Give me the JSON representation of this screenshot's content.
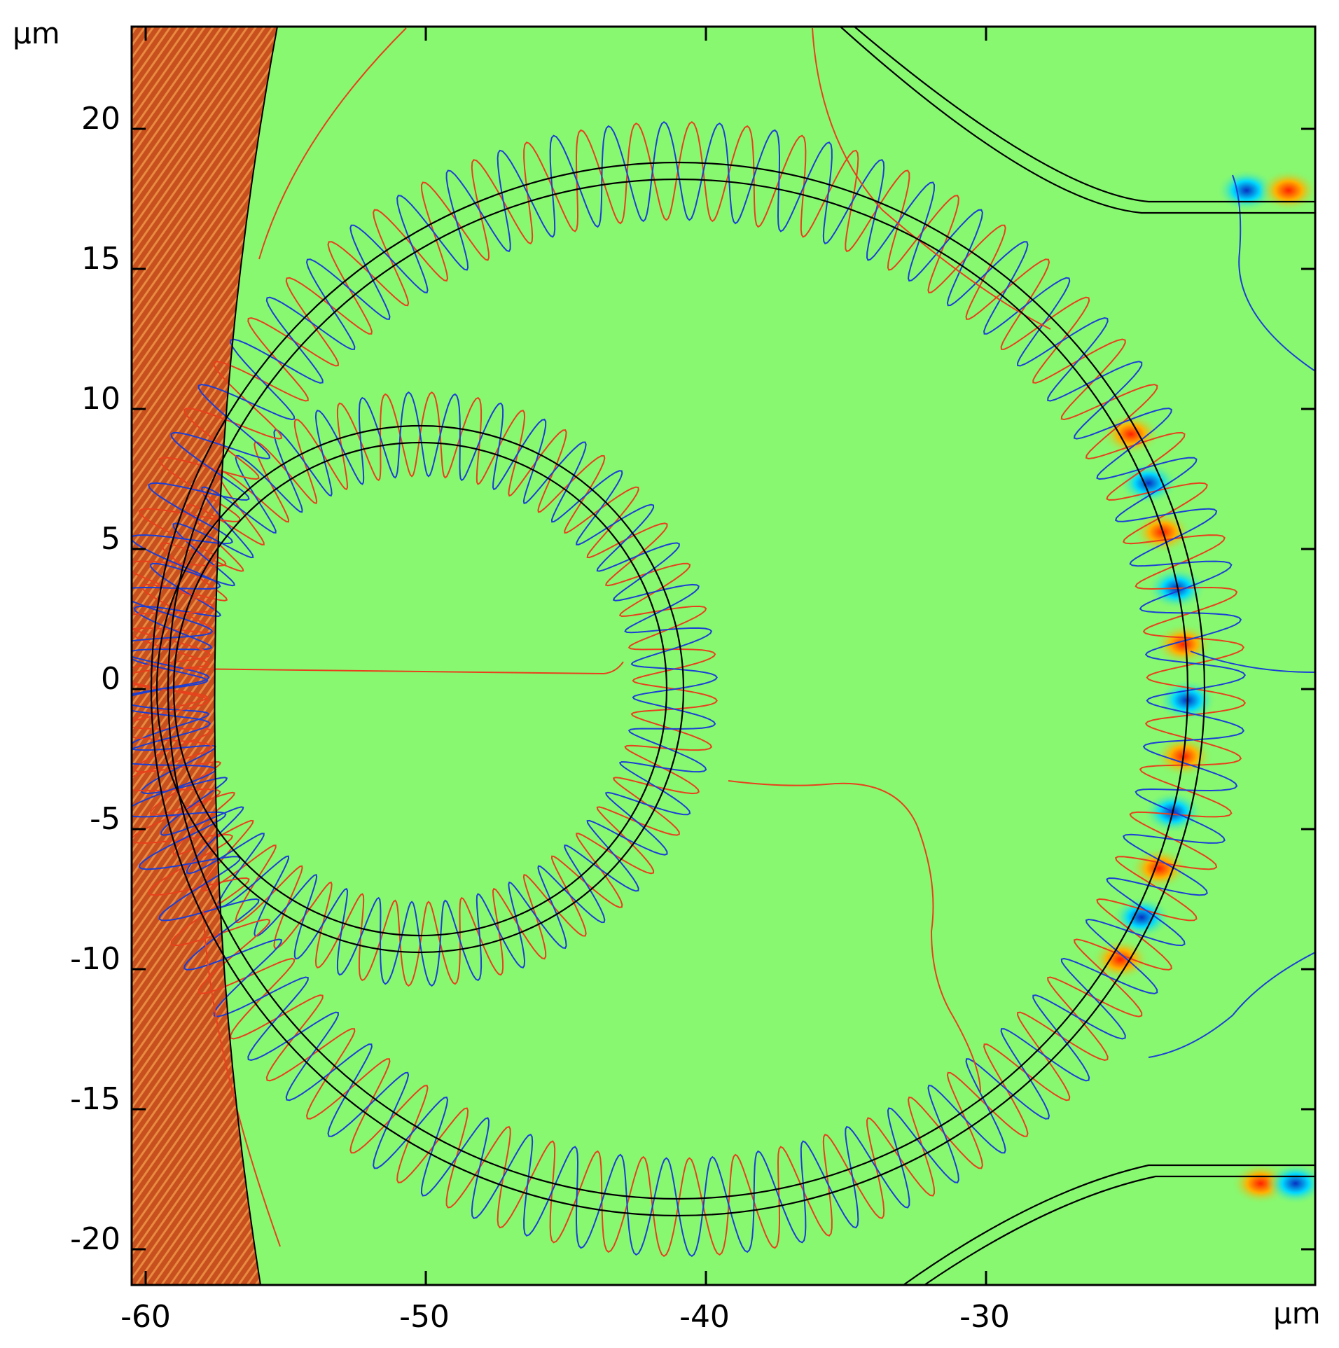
{
  "figure": {
    "x_unit": "μm",
    "y_unit": "μm",
    "x_ticks": [
      "-60",
      "-50",
      "-40",
      "-30"
    ],
    "x_tick_values": [
      -60,
      -50,
      -40,
      -30
    ],
    "y_ticks": [
      "20",
      "15",
      "10",
      "5",
      "0",
      "-5",
      "-10",
      "-15",
      "-20"
    ],
    "y_tick_values": [
      20,
      15,
      10,
      5,
      0,
      -5,
      -10,
      -15,
      -20
    ],
    "x_range": [
      -60.5,
      -18.0
    ],
    "y_range": [
      -22.0,
      23.2
    ],
    "colors": {
      "background": "#87f870",
      "positive_contour": "#e8401c",
      "negative_contour": "#1a3fd6",
      "waveguide": "#000000",
      "hot_spot": "#ff3000",
      "cold_spot": "#00d8ff",
      "edge_band": "#c8501e"
    },
    "structures": {
      "small_ring": {
        "center": [
          -50.2,
          0
        ],
        "outer_radius": 9.4,
        "inner_radius": 8.8,
        "lobes": 40
      },
      "large_ring": {
        "center": [
          -41,
          0
        ],
        "outer_radius": 18.8,
        "inner_radius": 18.2,
        "lobes": 64
      },
      "top_bus": {
        "end_y": 17.2
      },
      "bottom_bus": {
        "end_y": -17.2
      }
    }
  }
}
